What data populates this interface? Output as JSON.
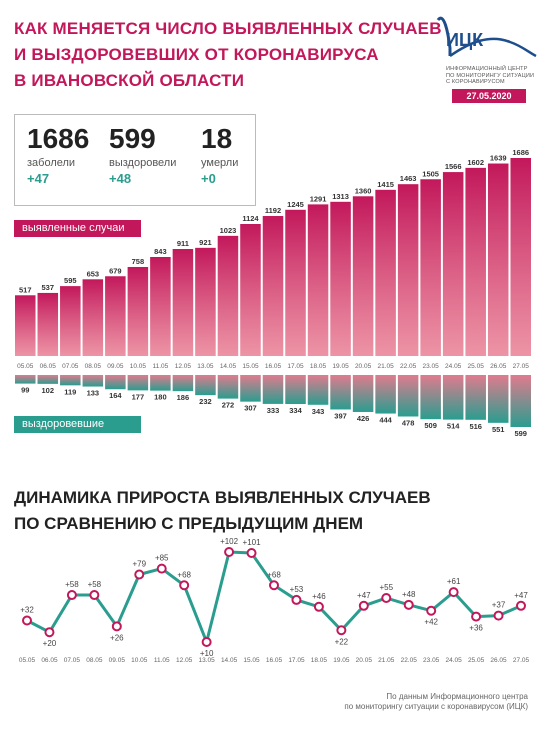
{
  "header": {
    "title_line1": "КАК МЕНЯЕТСЯ ЧИСЛО ВЫЯВЛЕННЫХ СЛУЧАЕВ",
    "title_line2": "И ВЫЗДОРОВЕВШИХ ОТ КОРОНАВИРУСА",
    "title_line3": "В ИВАНОВСКОЙ ОБЛАСТИ"
  },
  "logo": {
    "name": "ИЦК",
    "line1": "ИНФОРМАЦИОННЫЙ ЦЕНТР",
    "line2": "ПО МОНИТОРИНГУ СИТУАЦИИ",
    "line3": "С КОРОНАВИРУСОМ",
    "date": "27.05.2020"
  },
  "stats": {
    "infected": {
      "value": "1686",
      "label": "заболели",
      "delta": "+47"
    },
    "recovered": {
      "value": "599",
      "label": "выздоровели",
      "delta": "+48"
    },
    "deaths": {
      "value": "18",
      "label": "умерли",
      "delta": "+0"
    }
  },
  "tags": {
    "cases": "выявленные случаи",
    "recovered": "выздоровевшие"
  },
  "section2": {
    "line1": "ДИНАМИКА ПРИРОСТА ВЫЯВЛЕННЫХ СЛУЧАЕВ",
    "line2": "ПО СРАВНЕНИЮ С ПРЕДЫДУЩИМ ДНЕМ"
  },
  "footer": {
    "line1": "По данным Информационного центра",
    "line2": "по мониторингу ситуации с коронавирусом (ИЦК)"
  },
  "colors": {
    "accent": "#c2185b",
    "teal": "#2a9d8f",
    "line": "#2a9d8f",
    "marker": "#c2185b"
  },
  "chart_data": [
    {
      "type": "bar",
      "categories": [
        "05.05",
        "06.05",
        "07.05",
        "08.05",
        "09.05",
        "10.05",
        "11.05",
        "12.05",
        "13.05",
        "14.05",
        "15.05",
        "16.05",
        "17.05",
        "18.05",
        "19.05",
        "20.05",
        "21.05",
        "22.05",
        "23.05",
        "24.05",
        "25.05",
        "26.05",
        "27.05"
      ],
      "series": [
        {
          "name": "выявленные случаи",
          "values": [
            517,
            537,
            595,
            653,
            679,
            758,
            843,
            911,
            921,
            1023,
            1124,
            1192,
            1245,
            1291,
            1313,
            1360,
            1415,
            1463,
            1505,
            1566,
            1602,
            1639,
            1686
          ]
        },
        {
          "name": "выздоровевшие",
          "values": [
            99,
            102,
            119,
            133,
            164,
            177,
            180,
            186,
            232,
            272,
            307,
            333,
            334,
            343,
            397,
            426,
            444,
            478,
            509,
            514,
            516,
            551,
            599
          ]
        }
      ]
    },
    {
      "type": "line",
      "categories": [
        "05.05",
        "06.05",
        "07.05",
        "08.05",
        "09.05",
        "10.05",
        "11.05",
        "12.05",
        "13.05",
        "14.05",
        "15.05",
        "16.05",
        "17.05",
        "18.05",
        "19.05",
        "20.05",
        "21.05",
        "22.05",
        "23.05",
        "24.05",
        "25.05",
        "26.05",
        "27.05"
      ],
      "values": [
        32,
        20,
        58,
        58,
        26,
        79,
        85,
        68,
        10,
        102,
        101,
        68,
        53,
        46,
        22,
        47,
        55,
        48,
        42,
        61,
        36,
        37,
        47
      ],
      "labels": [
        "+32",
        "+20",
        "+58",
        "+58",
        "+26",
        "+79",
        "+85",
        "+68",
        "+10",
        "+102",
        "+101",
        "+68",
        "+53",
        "+46",
        "+22",
        "+47",
        "+55",
        "+48",
        "+42",
        "+61",
        "+36",
        "+37",
        "+47"
      ]
    }
  ]
}
